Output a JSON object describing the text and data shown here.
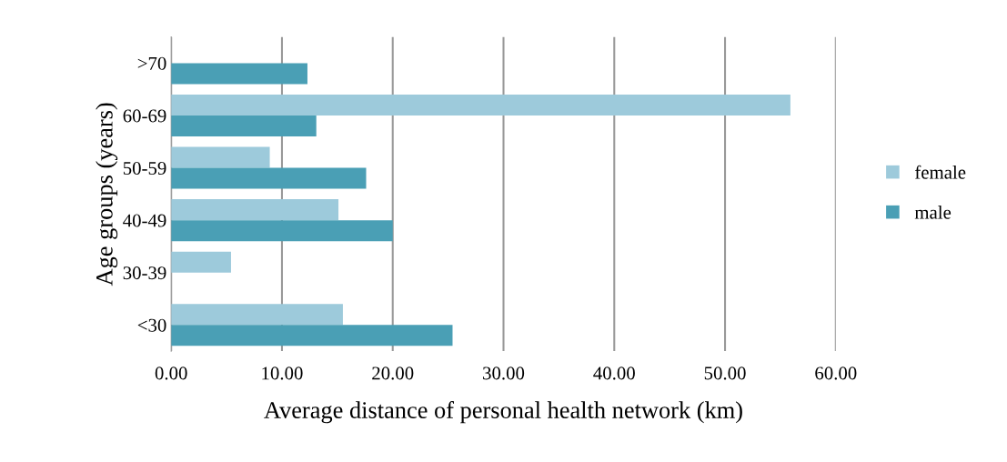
{
  "chart_data": {
    "type": "bar",
    "orientation": "horizontal",
    "xlabel": "Average distance of personal health network (km)",
    "ylabel": "Age groups (years)",
    "categories": [
      ">70",
      "60-69",
      "50-59",
      "40-49",
      "30-39",
      "<30"
    ],
    "series": [
      {
        "name": "female",
        "color": "#9dcadb",
        "values": [
          null,
          55.9,
          8.9,
          15.1,
          5.4,
          15.5
        ]
      },
      {
        "name": "male",
        "color": "#4a9fb5",
        "values": [
          12.3,
          13.1,
          17.6,
          20.0,
          null,
          25.4
        ]
      }
    ],
    "xlim": [
      0,
      60
    ],
    "xticks": [
      {
        "value": 0,
        "label": "0.00"
      },
      {
        "value": 10,
        "label": "10.00"
      },
      {
        "value": 20,
        "label": "20.00"
      },
      {
        "value": 30,
        "label": "30.00"
      },
      {
        "value": 40,
        "label": "40.00"
      },
      {
        "value": 50,
        "label": "50.00"
      },
      {
        "value": 60,
        "label": "60.00"
      }
    ],
    "grid": "x",
    "legend": "right"
  }
}
